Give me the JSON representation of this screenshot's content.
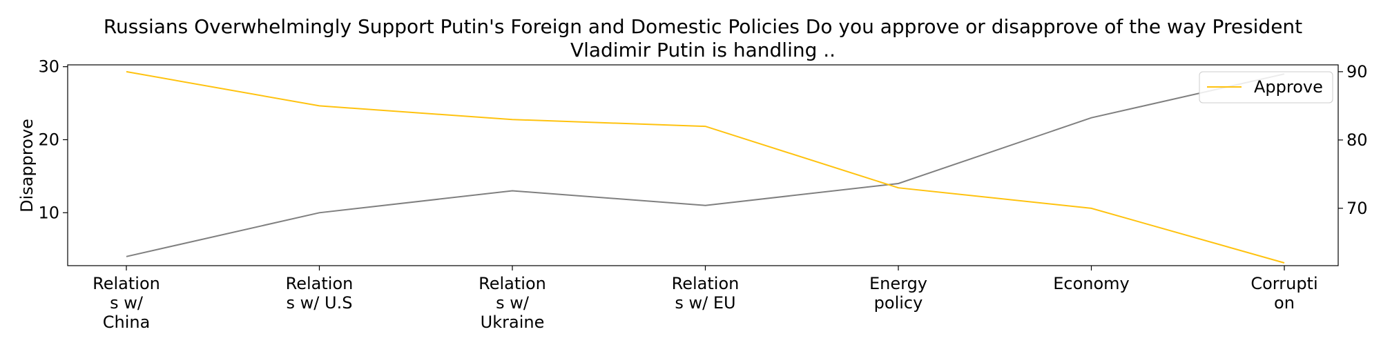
{
  "chart_data": {
    "type": "line",
    "title_lines": [
      "Russians Overwhelmingly Support Putin's Foreign and Domestic Policies Do you approve or disapprove of the way President",
      "Vladimir Putin is handling .."
    ],
    "categories": [
      [
        "Relation",
        "s w/",
        "China"
      ],
      [
        "Relation",
        "s w/ U.S"
      ],
      [
        "Relation",
        "s w/",
        "Ukraine"
      ],
      [
        "Relation",
        "s w/ EU"
      ],
      [
        "Energy",
        "policy"
      ],
      [
        "Economy"
      ],
      [
        "Corrupti",
        "on"
      ]
    ],
    "series": [
      {
        "name": "Disapprove",
        "axis": "left",
        "color": "#7f7f7f",
        "values": [
          4,
          10,
          13,
          11,
          14,
          23,
          29
        ]
      },
      {
        "name": "Approve",
        "axis": "right",
        "color": "#ffc20e",
        "values": [
          90,
          85,
          83,
          82,
          73,
          70,
          62
        ]
      }
    ],
    "ylabel_left": "Disapprove",
    "ylim_left": [
      2.75,
      30.25
    ],
    "yticks_left": [
      10,
      20,
      30
    ],
    "ylim_right": [
      61.6,
      91.0
    ],
    "yticks_right": [
      70,
      80,
      90
    ],
    "legend": {
      "position": "top-right",
      "label": "Approve"
    },
    "grid": false
  }
}
